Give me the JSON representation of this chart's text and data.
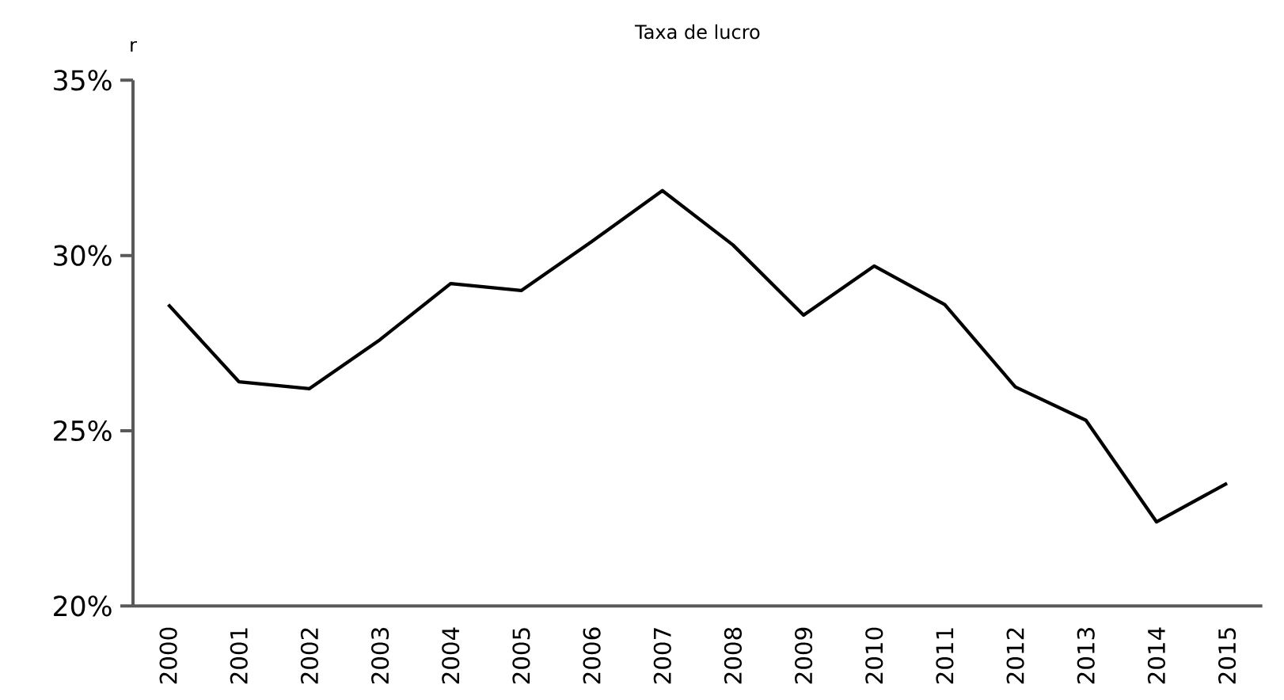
{
  "chart_data": {
    "type": "line",
    "title": "Taxa de lucro",
    "ylabel": "r",
    "categories": [
      "2000",
      "2001",
      "2002",
      "2003",
      "2004",
      "2005",
      "2006",
      "2007",
      "2008",
      "2009",
      "2010",
      "2011",
      "2012",
      "2013",
      "2014",
      "2015"
    ],
    "series": [
      {
        "color": "#000000",
        "values": [
          28.6,
          26.4,
          26.2,
          27.6,
          29.2,
          29.0,
          30.4,
          31.85,
          30.3,
          28.3,
          29.7,
          28.6,
          26.25,
          25.3,
          22.4,
          23.5
        ]
      }
    ],
    "ylim": [
      20,
      35
    ],
    "yticks": [
      {
        "value": 20,
        "label": "20%"
      },
      {
        "value": 25,
        "label": "25%"
      },
      {
        "value": 30,
        "label": "30%"
      },
      {
        "value": 35,
        "label": "35%"
      }
    ],
    "marker": "none",
    "line_style": "solid"
  }
}
